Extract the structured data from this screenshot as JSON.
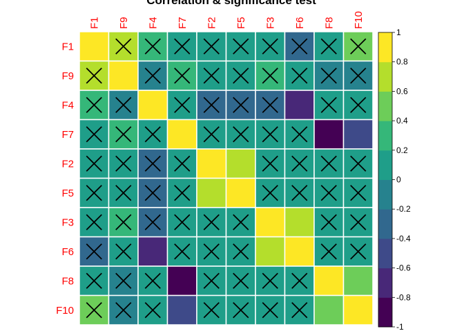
{
  "chart_data": {
    "type": "heatmap",
    "title": "Correlation & significance test",
    "variables": [
      "F1",
      "F9",
      "F4",
      "F7",
      "F2",
      "F5",
      "F3",
      "F6",
      "F8",
      "F10"
    ],
    "matrix": [
      [
        1.0,
        0.7,
        0.3,
        0.05,
        0.0,
        0.0,
        0.0,
        -0.3,
        0.1,
        0.5
      ],
      [
        0.7,
        1.0,
        -0.1,
        0.3,
        0.1,
        0.0,
        0.3,
        0.1,
        -0.15,
        -0.2
      ],
      [
        0.3,
        -0.1,
        1.0,
        0.1,
        -0.25,
        -0.35,
        -0.35,
        -0.65,
        0.1,
        0.1
      ],
      [
        0.05,
        0.3,
        0.1,
        1.0,
        0.1,
        0.05,
        0.0,
        0.0,
        -0.95,
        -0.45
      ],
      [
        0.0,
        0.1,
        -0.25,
        0.1,
        1.0,
        0.65,
        0.0,
        0.0,
        0.0,
        0.05
      ],
      [
        0.0,
        0.0,
        -0.35,
        0.05,
        0.65,
        1.0,
        0.0,
        0.05,
        0.0,
        0.05
      ],
      [
        0.0,
        0.3,
        -0.35,
        0.0,
        0.0,
        0.0,
        1.0,
        0.7,
        0.0,
        0.05
      ],
      [
        -0.3,
        0.1,
        -0.65,
        0.0,
        0.0,
        0.05,
        0.7,
        1.0,
        0.0,
        0.1
      ],
      [
        0.1,
        -0.15,
        0.1,
        -0.95,
        0.0,
        0.0,
        0.0,
        0.0,
        1.0,
        0.5
      ],
      [
        0.5,
        -0.2,
        0.1,
        -0.45,
        0.05,
        0.05,
        0.05,
        0.1,
        0.5,
        1.0
      ]
    ],
    "insignificant": [
      [
        false,
        true,
        true,
        true,
        true,
        true,
        true,
        true,
        true,
        true
      ],
      [
        true,
        false,
        true,
        true,
        true,
        true,
        true,
        true,
        true,
        true
      ],
      [
        true,
        true,
        false,
        true,
        true,
        true,
        true,
        false,
        true,
        true
      ],
      [
        true,
        true,
        true,
        false,
        true,
        true,
        true,
        true,
        false,
        false
      ],
      [
        true,
        true,
        true,
        true,
        false,
        false,
        true,
        true,
        true,
        true
      ],
      [
        true,
        true,
        true,
        true,
        false,
        false,
        true,
        true,
        true,
        true
      ],
      [
        true,
        true,
        true,
        true,
        true,
        true,
        false,
        false,
        true,
        true
      ],
      [
        true,
        true,
        false,
        true,
        true,
        true,
        false,
        false,
        true,
        true
      ],
      [
        true,
        true,
        true,
        false,
        true,
        true,
        true,
        true,
        false,
        false
      ],
      [
        true,
        true,
        true,
        false,
        true,
        true,
        true,
        true,
        false,
        false
      ]
    ],
    "colorbar": {
      "range": [
        -1,
        1
      ],
      "ticks": [
        -1,
        -0.8,
        -0.6,
        -0.4,
        -0.2,
        0,
        0.2,
        0.4,
        0.6,
        0.8,
        1
      ],
      "tick_labels": [
        "-1",
        "-0.8",
        "-0.6",
        "-0.4",
        "-0.2",
        "0",
        "0.2",
        "0.4",
        "0.6",
        "0.8",
        "1"
      ],
      "colors": [
        "#440154",
        "#482878",
        "#3E4A89",
        "#31688E",
        "#26828E",
        "#1F9E89",
        "#35B779",
        "#6DCD59",
        "#B4DE2C",
        "#FDE725"
      ]
    },
    "label_color": "#FF0000",
    "cell_border_color": "#FFFFFF",
    "cross_color": "#000000"
  }
}
